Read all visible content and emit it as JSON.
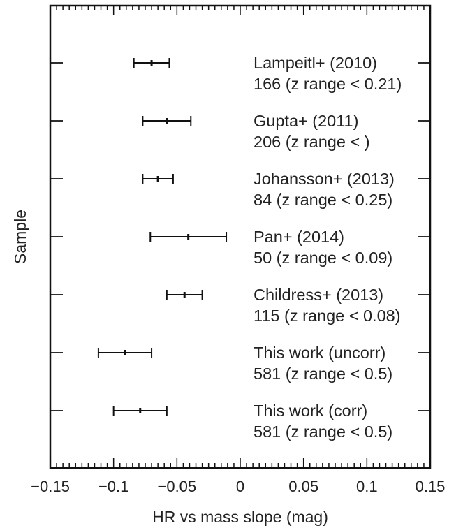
{
  "chart_data": {
    "type": "errorbar",
    "xlabel": "HR vs mass slope (mag)",
    "ylabel": "Sample",
    "xlim": [
      -0.15,
      0.15
    ],
    "x_ticks": [
      -0.15,
      -0.1,
      -0.05,
      0,
      0.05,
      0.1,
      0.15
    ],
    "x_tick_labels": [
      "−0.15",
      "−0.1",
      "−0.05",
      "0",
      "0.05",
      "0.1",
      "0.15"
    ],
    "grid": false,
    "points": [
      {
        "label": "Lampeitl+ (2010)",
        "sublabel": "166 (z range < 0.21)",
        "value": -0.07,
        "low": -0.084,
        "high": -0.056
      },
      {
        "label": "Gupta+ (2011)",
        "sublabel": "206 (z range < )",
        "value": -0.058,
        "low": -0.077,
        "high": -0.039
      },
      {
        "label": "Johansson+ (2013)",
        "sublabel": "84 (z range < 0.25)",
        "value": -0.065,
        "low": -0.077,
        "high": -0.053
      },
      {
        "label": "Pan+ (2014)",
        "sublabel": "50 (z range < 0.09)",
        "value": -0.041,
        "low": -0.071,
        "high": -0.011
      },
      {
        "label": "Childress+ (2013)",
        "sublabel": "115 (z range < 0.08)",
        "value": -0.044,
        "low": -0.058,
        "high": -0.03
      },
      {
        "label": "This work (uncorr)",
        "sublabel": "581 (z range < 0.5)",
        "value": -0.091,
        "low": -0.112,
        "high": -0.07
      },
      {
        "label": "This work (corr)",
        "sublabel": "581 (z range < 0.5)",
        "value": -0.079,
        "low": -0.1,
        "high": -0.058
      }
    ]
  }
}
